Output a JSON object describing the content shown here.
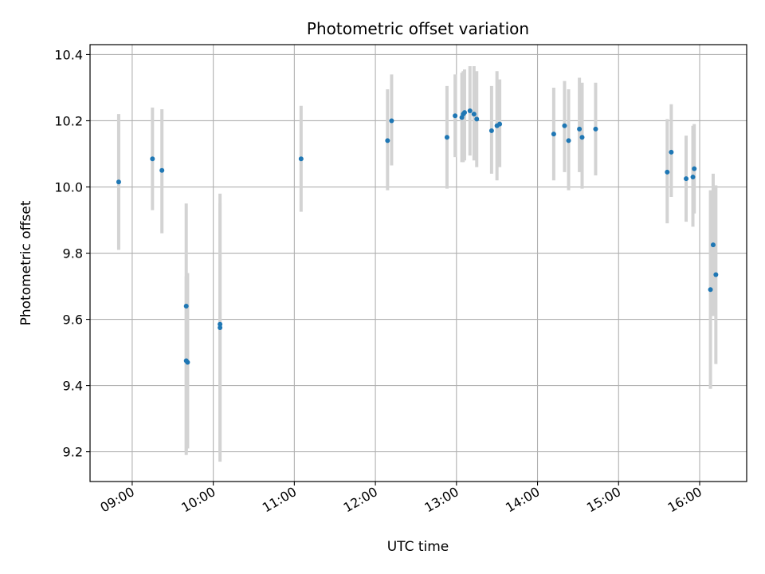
{
  "chart_data": {
    "type": "scatter",
    "title": "Photometric offset variation",
    "xlabel": "UTC time",
    "ylabel": "Photometric offset",
    "x_unit": "hours UTC",
    "xlim": [
      8.48,
      16.58
    ],
    "ylim": [
      9.11,
      10.43
    ],
    "x_ticks": [
      9,
      10,
      11,
      12,
      13,
      14,
      15,
      16
    ],
    "x_tick_labels": [
      "09:00",
      "10:00",
      "11:00",
      "12:00",
      "13:00",
      "14:00",
      "15:00",
      "16:00"
    ],
    "y_ticks": [
      9.2,
      9.4,
      9.6,
      9.8,
      10.0,
      10.2,
      10.4
    ],
    "y_tick_labels": [
      "9.2",
      "9.4",
      "9.6",
      "9.8",
      "10.0",
      "10.2",
      "10.4"
    ],
    "grid": true,
    "marker_color": "#1f77b4",
    "errorbar_color": "#d3d3d3",
    "points": [
      {
        "time": "08:50",
        "y": 10.015,
        "lo": 9.81,
        "hi": 10.22
      },
      {
        "time": "09:15",
        "y": 10.085,
        "lo": 9.93,
        "hi": 10.24
      },
      {
        "time": "09:22",
        "y": 10.05,
        "lo": 9.86,
        "hi": 10.235
      },
      {
        "time": "09:40",
        "y": 9.64,
        "lo": 9.19,
        "hi": 9.95
      },
      {
        "time": "09:40",
        "y": 9.475,
        "lo": 9.2,
        "hi": 9.73
      },
      {
        "time": "09:41",
        "y": 9.47,
        "lo": 9.21,
        "hi": 9.74
      },
      {
        "time": "10:05",
        "y": 9.585,
        "lo": 9.17,
        "hi": 9.98
      },
      {
        "time": "10:05",
        "y": 9.575,
        "lo": 9.2,
        "hi": 9.95
      },
      {
        "time": "11:05",
        "y": 10.085,
        "lo": 9.925,
        "hi": 10.245
      },
      {
        "time": "12:09",
        "y": 10.14,
        "lo": 9.99,
        "hi": 10.295
      },
      {
        "time": "12:12",
        "y": 10.2,
        "lo": 10.065,
        "hi": 10.34
      },
      {
        "time": "12:53",
        "y": 10.15,
        "lo": 9.995,
        "hi": 10.305
      },
      {
        "time": "12:59",
        "y": 10.215,
        "lo": 10.09,
        "hi": 10.34
      },
      {
        "time": "13:04",
        "y": 10.21,
        "lo": 10.075,
        "hi": 10.345
      },
      {
        "time": "13:05",
        "y": 10.22,
        "lo": 10.075,
        "hi": 10.35
      },
      {
        "time": "13:06",
        "y": 10.225,
        "lo": 10.08,
        "hi": 10.355
      },
      {
        "time": "13:10",
        "y": 10.23,
        "lo": 10.095,
        "hi": 10.365
      },
      {
        "time": "13:13",
        "y": 10.22,
        "lo": 10.08,
        "hi": 10.365
      },
      {
        "time": "13:15",
        "y": 10.205,
        "lo": 10.06,
        "hi": 10.35
      },
      {
        "time": "13:26",
        "y": 10.17,
        "lo": 10.04,
        "hi": 10.305
      },
      {
        "time": "13:30",
        "y": 10.185,
        "lo": 10.02,
        "hi": 10.35
      },
      {
        "time": "13:32",
        "y": 10.19,
        "lo": 10.06,
        "hi": 10.325
      },
      {
        "time": "14:12",
        "y": 10.16,
        "lo": 10.02,
        "hi": 10.3
      },
      {
        "time": "14:20",
        "y": 10.185,
        "lo": 10.045,
        "hi": 10.32
      },
      {
        "time": "14:23",
        "y": 10.14,
        "lo": 9.99,
        "hi": 10.295
      },
      {
        "time": "14:31",
        "y": 10.175,
        "lo": 10.045,
        "hi": 10.33
      },
      {
        "time": "14:33",
        "y": 10.15,
        "lo": 9.995,
        "hi": 10.315
      },
      {
        "time": "14:43",
        "y": 10.175,
        "lo": 10.035,
        "hi": 10.315
      },
      {
        "time": "15:36",
        "y": 10.045,
        "lo": 9.89,
        "hi": 10.205
      },
      {
        "time": "15:39",
        "y": 10.105,
        "lo": 9.97,
        "hi": 10.25
      },
      {
        "time": "15:50",
        "y": 10.025,
        "lo": 9.895,
        "hi": 10.155
      },
      {
        "time": "15:55",
        "y": 10.03,
        "lo": 9.88,
        "hi": 10.185
      },
      {
        "time": "15:56",
        "y": 10.055,
        "lo": 9.92,
        "hi": 10.19
      },
      {
        "time": "16:08",
        "y": 9.69,
        "lo": 9.39,
        "hi": 9.99
      },
      {
        "time": "16:10",
        "y": 9.825,
        "lo": 9.61,
        "hi": 10.04
      },
      {
        "time": "16:12",
        "y": 9.735,
        "lo": 9.465,
        "hi": 10.005
      }
    ]
  }
}
